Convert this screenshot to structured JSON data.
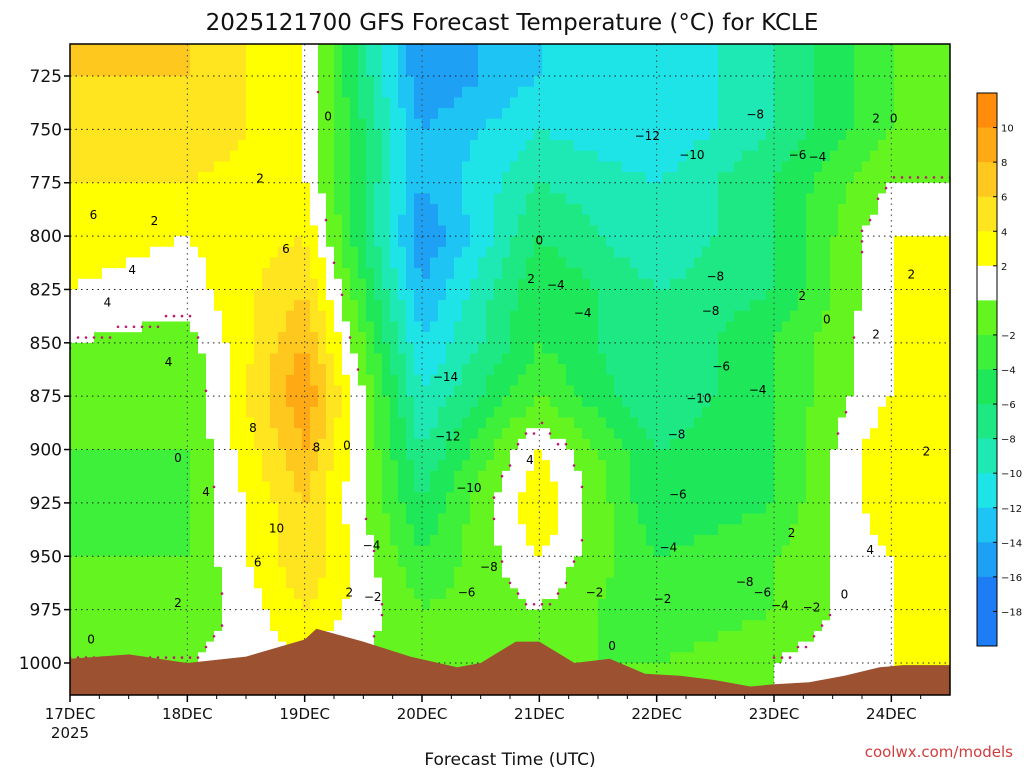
{
  "colors": {
    "ground": "#9c5230",
    "freezing_contour": "#c0186e",
    "bands": {
      "-20": "#1e7cf4",
      "-18": "#1e7cf4",
      "-16": "#1ea0f4",
      "-14": "#1ec4f4",
      "-12": "#1ee4e8",
      "-10": "#1ee8b4",
      "-8": "#1ee884",
      "-6": "#1ee85a",
      "-4": "#3ef03a",
      "-2": "#64f520",
      "0": "#ffffff",
      "2": "#ffff00",
      "4": "#ffe420",
      "6": "#ffc81e",
      "8": "#ffaa14",
      "10": "#ff8c0a",
      "12": "#e07808"
    }
  },
  "chart_data": {
    "type": "heatmap",
    "title": "2025121700 GFS Forecast Temperature (°C) for KCLE",
    "xlabel": "Forecast Time (UTC)",
    "ylabel": "",
    "credit": "coolwx.com/models",
    "x_tick_labels": [
      "17DEC",
      "18DEC",
      "19DEC",
      "20DEC",
      "21DEC",
      "22DEC",
      "23DEC",
      "24DEC"
    ],
    "x_first_year_label": "2025",
    "x_range_days": [
      0,
      7.5
    ],
    "y_tick_labels": [
      "725",
      "750",
      "775",
      "800",
      "825",
      "850",
      "875",
      "900",
      "925",
      "950",
      "975",
      "1000"
    ],
    "y_range_hpa": [
      710,
      1015
    ],
    "colorbar_tick_labels": [
      "10",
      "8",
      "6",
      "4",
      "2",
      "−2",
      "−4",
      "−6",
      "−8",
      "−10",
      "−12",
      "−14",
      "−16",
      "−18"
    ],
    "colorbar_levels": [
      12,
      10,
      8,
      6,
      4,
      2,
      0,
      -2,
      -4,
      -6,
      -8,
      -10,
      -12,
      -14,
      -16,
      -18,
      -20
    ],
    "day_grid": [
      0,
      1,
      2,
      3,
      4,
      5,
      6,
      7,
      7.5
    ],
    "temperature_profiles": [
      [
        6,
        4,
        4,
        3,
        2,
        0,
        -2,
        -2,
        -3,
        -2,
        -2,
        0
      ],
      [
        6,
        6,
        4,
        2,
        1,
        -1,
        -2,
        -2,
        -2,
        -2,
        -2,
        0
      ],
      [
        2,
        2,
        2,
        4,
        6,
        8,
        10,
        8,
        6,
        6,
        4,
        2
      ],
      [
        -16,
        -14,
        -14,
        -16,
        -14,
        -12,
        -10,
        -8,
        -6,
        -4,
        -2,
        -2
      ],
      [
        -12,
        -10,
        -8,
        -6,
        -4,
        -4,
        -2,
        2,
        4,
        2,
        0,
        -2
      ],
      [
        -12,
        -12,
        -10,
        -10,
        -8,
        -8,
        -8,
        -6,
        -6,
        -4,
        -4,
        -2
      ],
      [
        -8,
        -8,
        -6,
        -6,
        -6,
        -4,
        -4,
        -4,
        -4,
        -2,
        -2,
        0
      ],
      [
        -2,
        -2,
        0,
        2,
        2,
        2,
        2,
        4,
        4,
        2,
        2,
        2
      ],
      [
        -2,
        -2,
        0,
        2,
        2,
        2,
        2,
        2,
        2,
        2,
        2,
        2
      ]
    ],
    "profile_pressure_levels": [
      725,
      750,
      775,
      800,
      825,
      850,
      875,
      900,
      925,
      950,
      975,
      1000
    ],
    "surface_pressure": [
      [
        0,
        998
      ],
      [
        0.5,
        996
      ],
      [
        1,
        1000
      ],
      [
        1.5,
        997
      ],
      [
        2,
        989
      ],
      [
        2.1,
        984
      ],
      [
        2.5,
        990
      ],
      [
        2.9,
        997
      ],
      [
        3.3,
        1002
      ],
      [
        3.5,
        1000
      ],
      [
        3.8,
        990
      ],
      [
        4,
        990
      ],
      [
        4.3,
        1000
      ],
      [
        4.6,
        998
      ],
      [
        4.9,
        1005
      ],
      [
        5.2,
        1006
      ],
      [
        5.5,
        1008
      ],
      [
        5.8,
        1011
      ],
      [
        6,
        1010
      ],
      [
        6.3,
        1009
      ],
      [
        6.6,
        1006
      ],
      [
        6.9,
        1002
      ],
      [
        7.1,
        1001
      ],
      [
        7.5,
        1001
      ]
    ],
    "contour_labels": [
      {
        "day": 0.2,
        "p": 790,
        "text": "6"
      },
      {
        "day": 0.32,
        "p": 831,
        "text": "4"
      },
      {
        "day": 0.53,
        "p": 816,
        "text": "4"
      },
      {
        "day": 0.72,
        "p": 793,
        "text": "2"
      },
      {
        "day": 0.84,
        "p": 859,
        "text": "4"
      },
      {
        "day": 0.92,
        "p": 904,
        "text": "0"
      },
      {
        "day": 0.18,
        "p": 989,
        "text": "0"
      },
      {
        "day": 0.92,
        "p": 972,
        "text": "2"
      },
      {
        "day": 1.16,
        "p": 920,
        "text": "4"
      },
      {
        "day": 1.6,
        "p": 953,
        "text": "6"
      },
      {
        "day": 1.56,
        "p": 890,
        "text": "8"
      },
      {
        "day": 1.76,
        "p": 937,
        "text": "10"
      },
      {
        "day": 1.62,
        "p": 773,
        "text": "2"
      },
      {
        "day": 1.84,
        "p": 806,
        "text": "6"
      },
      {
        "day": 2.1,
        "p": 899,
        "text": "8"
      },
      {
        "day": 2.2,
        "p": 744,
        "text": "0"
      },
      {
        "day": 2.36,
        "p": 898,
        "text": "0"
      },
      {
        "day": 2.38,
        "p": 967,
        "text": "2"
      },
      {
        "day": 2.58,
        "p": 969,
        "text": "−2"
      },
      {
        "day": 2.57,
        "p": 945,
        "text": "−4"
      },
      {
        "day": 3.2,
        "p": 866,
        "text": "−14"
      },
      {
        "day": 3.22,
        "p": 894,
        "text": "−12"
      },
      {
        "day": 3.4,
        "p": 918,
        "text": "−10"
      },
      {
        "day": 3.57,
        "p": 955,
        "text": "−8"
      },
      {
        "day": 3.38,
        "p": 967,
        "text": "−6"
      },
      {
        "day": 4.0,
        "p": 802,
        "text": "0"
      },
      {
        "day": 3.93,
        "p": 820,
        "text": "2"
      },
      {
        "day": 4.14,
        "p": 823,
        "text": "−4"
      },
      {
        "day": 4.37,
        "p": 836,
        "text": "−4"
      },
      {
        "day": 3.92,
        "p": 905,
        "text": "4"
      },
      {
        "day": 4.47,
        "p": 967,
        "text": "−2"
      },
      {
        "day": 4.62,
        "p": 992,
        "text": "0"
      },
      {
        "day": 4.92,
        "p": 753,
        "text": "−12"
      },
      {
        "day": 5.3,
        "p": 762,
        "text": "−10"
      },
      {
        "day": 5.84,
        "p": 743,
        "text": "−8"
      },
      {
        "day": 6.2,
        "p": 762,
        "text": "−6"
      },
      {
        "day": 6.37,
        "p": 763,
        "text": "−4"
      },
      {
        "day": 5.5,
        "p": 819,
        "text": "−8"
      },
      {
        "day": 5.46,
        "p": 835,
        "text": "−8"
      },
      {
        "day": 5.55,
        "p": 861,
        "text": "−6"
      },
      {
        "day": 5.86,
        "p": 872,
        "text": "−4"
      },
      {
        "day": 5.36,
        "p": 876,
        "text": "−10"
      },
      {
        "day": 5.17,
        "p": 893,
        "text": "−8"
      },
      {
        "day": 5.18,
        "p": 921,
        "text": "−6"
      },
      {
        "day": 5.1,
        "p": 946,
        "text": "−4"
      },
      {
        "day": 5.05,
        "p": 970,
        "text": "−2"
      },
      {
        "day": 5.75,
        "p": 962,
        "text": "−8"
      },
      {
        "day": 5.9,
        "p": 967,
        "text": "−6"
      },
      {
        "day": 6.05,
        "p": 973,
        "text": "−4"
      },
      {
        "day": 6.32,
        "p": 974,
        "text": "−2"
      },
      {
        "day": 6.15,
        "p": 939,
        "text": "2"
      },
      {
        "day": 6.24,
        "p": 828,
        "text": "2"
      },
      {
        "day": 6.45,
        "p": 839,
        "text": "0"
      },
      {
        "day": 6.87,
        "p": 745,
        "text": "2"
      },
      {
        "day": 7.02,
        "p": 745,
        "text": "0"
      },
      {
        "day": 6.87,
        "p": 846,
        "text": "2"
      },
      {
        "day": 7.17,
        "p": 818,
        "text": "2"
      },
      {
        "day": 7.3,
        "p": 901,
        "text": "2"
      },
      {
        "day": 6.82,
        "p": 947,
        "text": "4"
      },
      {
        "day": 6.6,
        "p": 968,
        "text": "0"
      }
    ]
  }
}
